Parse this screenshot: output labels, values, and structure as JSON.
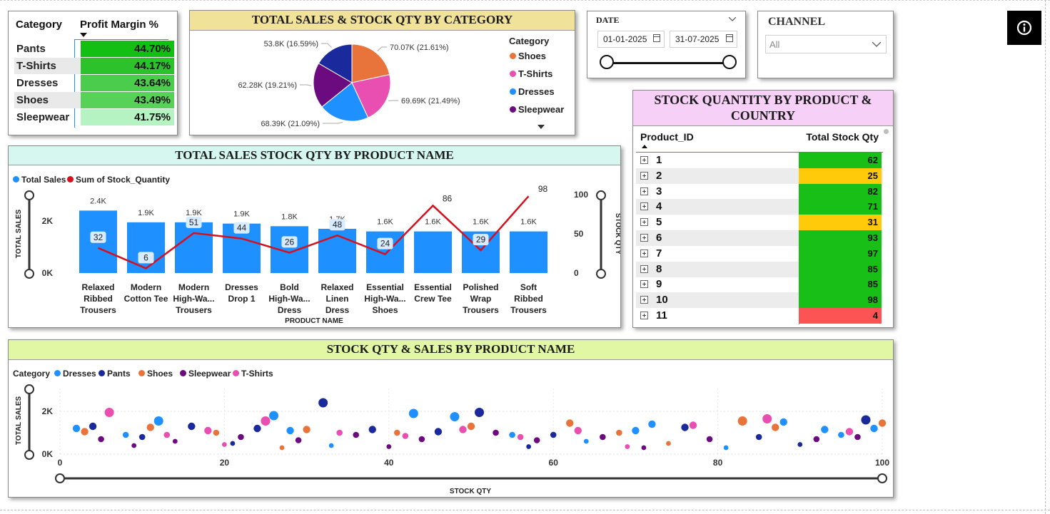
{
  "margin_table": {
    "headers": [
      "Category",
      "Profit Margin %"
    ],
    "rows": [
      {
        "category": "Pants",
        "margin": "44.70%",
        "color": "#13bf13"
      },
      {
        "category": "T-Shirts",
        "margin": "44.17%",
        "color": "#2cc22c"
      },
      {
        "category": "Dresses",
        "margin": "43.64%",
        "color": "#4ccc4c"
      },
      {
        "category": "Shoes",
        "margin": "43.49%",
        "color": "#57d157"
      },
      {
        "category": "Sleepwear",
        "margin": "41.75%",
        "color": "#b6f3c2"
      }
    ]
  },
  "pie_card": {
    "title": "TOTAL SALES & STOCK QTY BY CATEGORY",
    "title_bg": "#f1e29a",
    "legend_title": "Category",
    "legend": [
      {
        "name": "Shoes",
        "color": "#e8743b"
      },
      {
        "name": "T-Shirts",
        "color": "#e84fb1"
      },
      {
        "name": "Dresses",
        "color": "#1e90ff"
      },
      {
        "name": "Sleepwear",
        "color": "#6b0b7f"
      }
    ],
    "chart_data": {
      "type": "pie",
      "slices": [
        {
          "category": "Shoes",
          "value": 70070,
          "label": "70.07K (21.61%)",
          "color": "#e8743b"
        },
        {
          "category": "T-Shirts",
          "value": 69690,
          "label": "69.69K (21.49%)",
          "color": "#e84fb1"
        },
        {
          "category": "Dresses",
          "value": 68390,
          "label": "68.39K (21.09%)",
          "color": "#1e90ff"
        },
        {
          "category": "Sleepwear",
          "value": 62280,
          "label": "62.28K (19.21%)",
          "color": "#6b0b7f"
        },
        {
          "category": "Pants",
          "value": 53800,
          "label": "53.8K (16.59%)",
          "color": "#1a2a9c"
        }
      ]
    }
  },
  "date_slicer": {
    "label": "DATE",
    "start": "01-01-2025",
    "end": "31-07-2025"
  },
  "channel_slicer": {
    "label": "CHANNEL",
    "value": "All"
  },
  "info_button": {
    "icon": "info-icon"
  },
  "bar_card": {
    "title": "TOTAL SALES STOCK QTY BY PRODUCT NAME",
    "title_bg": "#d5f7ef",
    "legend": [
      {
        "name": "Total Sales",
        "color": "#1e90ff"
      },
      {
        "name": "Sum of Stock_Quantity",
        "color": "#d6101e"
      }
    ],
    "chart_data": {
      "type": "bar",
      "categories": [
        [
          "Relaxed",
          "Ribbed",
          "Trousers"
        ],
        [
          "Modern",
          "Cotton Tee"
        ],
        [
          "Modern",
          "High-Wa...",
          "Trousers"
        ],
        [
          "Dresses",
          "Drop 1"
        ],
        [
          "Bold",
          "High-Wa...",
          "Dress"
        ],
        [
          "Relaxed",
          "Linen",
          "Dress"
        ],
        [
          "Essential",
          "High-Wa...",
          "Shoes"
        ],
        [
          "Essential",
          "Crew Tee"
        ],
        [
          "Polished",
          "Wrap",
          "Trousers"
        ],
        [
          "Soft",
          "Ribbed",
          "Trousers"
        ]
      ],
      "series": [
        {
          "name": "Total Sales",
          "type": "bar",
          "color": "#1e90ff",
          "values": [
            2400,
            1950,
            1950,
            1900,
            1800,
            1700,
            1600,
            1600,
            1600,
            1600
          ],
          "labels": [
            "2.4K",
            "1.9K",
            "1.9K",
            "1.9K",
            "1.8K",
            "1.7K",
            "1.6K",
            "1.6K",
            "1.6K",
            "1.6K"
          ]
        },
        {
          "name": "Sum of Stock_Quantity",
          "type": "line",
          "color": "#d6101e",
          "values": [
            32,
            6,
            51,
            44,
            26,
            48,
            24,
            86,
            29,
            98
          ]
        }
      ],
      "xlabel": "PRODUCT NAME",
      "ylabel": "TOTAL SALES",
      "y2label": "STOCK QTY",
      "yticks": [
        "0K",
        "2K"
      ],
      "y2ticks": [
        "0",
        "50",
        "100"
      ],
      "ylim": [
        0,
        2600
      ],
      "y2lim": [
        0,
        100
      ]
    }
  },
  "stock_table": {
    "title": "STOCK QUANTITY BY PRODUCT & COUNTRY",
    "title_bg": "#f6d0f6",
    "headers": [
      "Product_ID",
      "Total Stock Qty"
    ],
    "rows": [
      {
        "id": "1",
        "qty": "62",
        "color": "#17bf17"
      },
      {
        "id": "2",
        "qty": "25",
        "color": "#ffca0a"
      },
      {
        "id": "3",
        "qty": "82",
        "color": "#17bf17"
      },
      {
        "id": "4",
        "qty": "71",
        "color": "#17bf17"
      },
      {
        "id": "5",
        "qty": "31",
        "color": "#ffca0a"
      },
      {
        "id": "6",
        "qty": "93",
        "color": "#17bf17"
      },
      {
        "id": "7",
        "qty": "97",
        "color": "#17bf17"
      },
      {
        "id": "8",
        "qty": "85",
        "color": "#17bf17"
      },
      {
        "id": "9",
        "qty": "85",
        "color": "#17bf17"
      },
      {
        "id": "10",
        "qty": "98",
        "color": "#17bf17"
      },
      {
        "id": "11",
        "qty": "4",
        "color": "#fc5454"
      }
    ]
  },
  "scatter_card": {
    "title": "STOCK QTY & SALES BY PRODUCT NAME",
    "title_bg": "#e2f7a3",
    "legend_title": "Category",
    "legend": [
      {
        "name": "Dresses",
        "color": "#1e90ff"
      },
      {
        "name": "Pants",
        "color": "#1a2a9c"
      },
      {
        "name": "Shoes",
        "color": "#e8743b"
      },
      {
        "name": "Sleepwear",
        "color": "#6b0b7f"
      },
      {
        "name": "T-Shirts",
        "color": "#e84fb1"
      }
    ],
    "chart_data": {
      "type": "scatter",
      "xlabel": "STOCK QTY",
      "ylabel": "TOTAL SALES",
      "xlim": [
        0,
        100
      ],
      "ylim": [
        0,
        3000
      ],
      "xticks": [
        "0",
        "20",
        "40",
        "60",
        "80",
        "100"
      ],
      "yticks": [
        "0K",
        "2K"
      ],
      "series": [
        {
          "name": "Dresses",
          "points": [
            [
              2,
              1200
            ],
            [
              8,
              900
            ],
            [
              12,
              1550
            ],
            [
              26,
              1800
            ],
            [
              28,
              1100
            ],
            [
              43,
              1900
            ],
            [
              48,
              1750
            ],
            [
              55,
              900
            ],
            [
              70,
              1100
            ],
            [
              72,
              1400
            ],
            [
              88,
              1500
            ],
            [
              93,
              1150
            ],
            [
              95,
              900
            ],
            [
              99,
              1200
            ],
            [
              33,
              400
            ],
            [
              64,
              600
            ],
            [
              81,
              300
            ]
          ]
        },
        {
          "name": "Pants",
          "points": [
            [
              4,
              1300
            ],
            [
              10,
              800
            ],
            [
              16,
              1300
            ],
            [
              24,
              1200
            ],
            [
              32,
              2400
            ],
            [
              38,
              1150
            ],
            [
              46,
              1050
            ],
            [
              51,
              1950
            ],
            [
              60,
              900
            ],
            [
              76,
              1250
            ],
            [
              85,
              800
            ],
            [
              98,
              1600
            ],
            [
              21,
              500
            ],
            [
              57,
              350
            ],
            [
              90,
              450
            ]
          ]
        },
        {
          "name": "Shoes",
          "points": [
            [
              3,
              1050
            ],
            [
              11,
              1250
            ],
            [
              19,
              1000
            ],
            [
              30,
              1150
            ],
            [
              41,
              1000
            ],
            [
              50,
              1300
            ],
            [
              62,
              1450
            ],
            [
              68,
              1000
            ],
            [
              83,
              1550
            ],
            [
              87,
              1250
            ],
            [
              100,
              1450
            ],
            [
              27,
              300
            ],
            [
              74,
              500
            ]
          ]
        },
        {
          "name": "Sleepwear",
          "points": [
            [
              5,
              700
            ],
            [
              14,
              600
            ],
            [
              22,
              800
            ],
            [
              29,
              650
            ],
            [
              36,
              900
            ],
            [
              44,
              700
            ],
            [
              53,
              1000
            ],
            [
              58,
              650
            ],
            [
              66,
              800
            ],
            [
              79,
              700
            ],
            [
              92,
              700
            ],
            [
              97,
              800
            ],
            [
              9,
              400
            ],
            [
              40,
              350
            ],
            [
              71,
              300
            ]
          ]
        },
        {
          "name": "T-Shirts",
          "points": [
            [
              6,
              1950
            ],
            [
              13,
              900
            ],
            [
              18,
              1100
            ],
            [
              25,
              1550
            ],
            [
              34,
              1000
            ],
            [
              42,
              850
            ],
            [
              49,
              1150
            ],
            [
              56,
              800
            ],
            [
              63,
              1100
            ],
            [
              77,
              1350
            ],
            [
              86,
              1650
            ],
            [
              96,
              1050
            ],
            [
              20,
              450
            ],
            [
              69,
              350
            ]
          ]
        }
      ]
    }
  }
}
